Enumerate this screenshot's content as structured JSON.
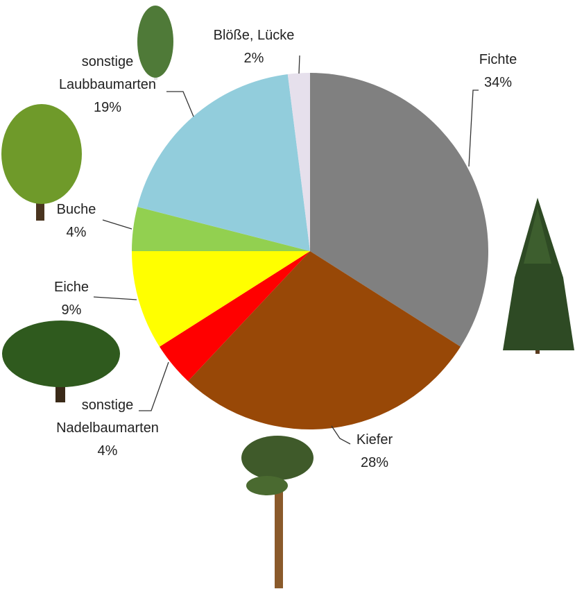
{
  "chart_data": {
    "type": "pie",
    "categories": [
      "Fichte",
      "Kiefer",
      "sonstige Nadelbaumarten",
      "Eiche",
      "Buche",
      "sonstige Laubbaumarten",
      "Blöße, Lücke"
    ],
    "values": [
      34,
      28,
      4,
      9,
      4,
      19,
      2
    ],
    "value_labels": [
      "34%",
      "28%",
      "4%",
      "9%",
      "4%",
      "19%",
      "2%"
    ],
    "colors": [
      "#808080",
      "#984807",
      "#ff0000",
      "#ffff00",
      "#92d050",
      "#92cddc",
      "#e6e0ec"
    ]
  }
}
